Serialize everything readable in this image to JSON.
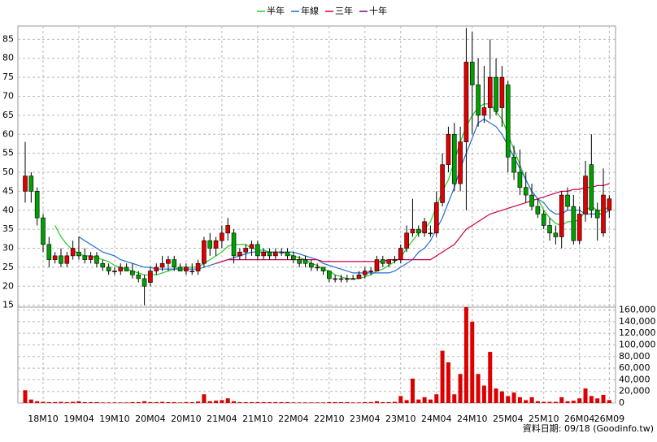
{
  "chart_data": {
    "type": "candlestick",
    "footer": "資料日期: 09/18 (Goodinfo.tw)",
    "categories": [
      null,
      null,
      null,
      "18M10",
      null,
      null,
      null,
      null,
      null,
      "19M04",
      null,
      null,
      null,
      null,
      null,
      "19M10",
      null,
      null,
      null,
      null,
      null,
      "20M04",
      null,
      null,
      null,
      null,
      null,
      "20M10",
      null,
      null,
      null,
      null,
      null,
      "21M04",
      null,
      null,
      null,
      null,
      null,
      "21M10",
      null,
      null,
      null,
      null,
      null,
      "22M04",
      null,
      null,
      null,
      null,
      null,
      "22M10",
      null,
      null,
      null,
      null,
      null,
      "23M04",
      null,
      null,
      null,
      null,
      null,
      "23M10",
      null,
      null,
      null,
      null,
      null,
      "24M04",
      null,
      null,
      null,
      null,
      null,
      "24M10",
      null,
      null,
      null,
      null,
      null,
      "25M04",
      null,
      null,
      null,
      null,
      null,
      "25M10",
      null,
      null,
      null,
      null,
      null,
      "26M04",
      null,
      null,
      null,
      null,
      "26M09"
    ],
    "open": [
      45,
      49,
      45,
      38,
      31,
      27,
      28,
      26,
      28,
      29,
      28,
      27,
      28,
      26,
      25,
      24,
      24,
      25,
      24,
      23,
      22,
      21,
      24,
      25,
      26,
      27,
      25,
      24,
      24,
      24,
      26,
      32,
      30,
      32,
      34,
      34,
      28,
      29,
      30,
      31,
      28,
      29,
      28,
      29,
      29,
      28,
      27,
      27,
      26,
      25,
      25,
      24,
      22,
      22,
      22,
      22,
      22,
      23,
      24,
      24,
      27,
      26,
      27,
      27,
      30,
      34,
      35,
      34,
      34,
      34,
      42,
      52,
      60,
      47,
      58,
      79,
      73,
      65,
      67,
      75,
      67,
      73,
      54,
      50,
      46,
      44,
      41,
      39,
      36,
      34,
      33,
      44,
      41,
      32,
      39,
      52,
      40,
      34,
      40
    ],
    "high": [
      58,
      50,
      46,
      39,
      33,
      29,
      30,
      29,
      32,
      33,
      30,
      29,
      29,
      27,
      26,
      25,
      26,
      26,
      26,
      24,
      23,
      25,
      26,
      28,
      28,
      28,
      26,
      26,
      26,
      27,
      33,
      34,
      33,
      36,
      38,
      35,
      30,
      31,
      32,
      32,
      30,
      30,
      30,
      30,
      30,
      29,
      28,
      28,
      27,
      26,
      25,
      24,
      23,
      23,
      23,
      23,
      24,
      25,
      25,
      28,
      28,
      27,
      28,
      31,
      36,
      43,
      36,
      38,
      36,
      45,
      55,
      62,
      63,
      62,
      88,
      87,
      80,
      78,
      85,
      80,
      78,
      74,
      57,
      56,
      50,
      47,
      43,
      40,
      38,
      36,
      45,
      46,
      44,
      41,
      53,
      60,
      42,
      51,
      44
    ],
    "low": [
      42,
      42,
      36,
      29,
      25,
      26,
      25,
      25,
      27,
      27,
      26,
      26,
      25,
      24,
      23,
      23,
      23,
      24,
      22,
      21,
      15,
      20,
      23,
      24,
      24,
      24,
      24,
      23,
      23,
      23,
      25,
      28,
      28,
      30,
      32,
      26,
      27,
      27,
      28,
      27,
      27,
      27,
      27,
      28,
      27,
      26,
      25,
      25,
      24,
      24,
      23,
      21,
      21,
      21,
      21,
      22,
      22,
      22,
      23,
      24,
      25,
      25,
      26,
      26,
      29,
      33,
      33,
      33,
      33,
      33,
      41,
      50,
      45,
      45,
      40,
      60,
      62,
      63,
      64,
      65,
      62,
      50,
      48,
      44,
      42,
      40,
      38,
      35,
      32,
      31,
      30,
      40,
      31,
      31,
      37,
      38,
      32,
      33,
      38
    ],
    "close": [
      49,
      45,
      38,
      31,
      27,
      28,
      26,
      28,
      30,
      28,
      27,
      28,
      26,
      25,
      24,
      24,
      25,
      24,
      23,
      22,
      20,
      24,
      25,
      26,
      27,
      25,
      24,
      25,
      24,
      26,
      32,
      30,
      32,
      34,
      36,
      28,
      29,
      30,
      31,
      28,
      29,
      28,
      29,
      29,
      28,
      27,
      26,
      26,
      25,
      25,
      24,
      22,
      22,
      22,
      22,
      22,
      23,
      24,
      24,
      27,
      26,
      27,
      27,
      30,
      34,
      35,
      34,
      37,
      34,
      42,
      52,
      60,
      47,
      58,
      79,
      73,
      65,
      67,
      75,
      66,
      75,
      54,
      50,
      46,
      44,
      41,
      39,
      36,
      34,
      33,
      44,
      41,
      32,
      39,
      49,
      40,
      38,
      44,
      43
    ],
    "volume": [
      22000,
      6000,
      3000,
      2000,
      1500,
      1500,
      2000,
      1500,
      2000,
      3000,
      1500,
      1500,
      1500,
      1000,
      1000,
      1000,
      1000,
      1000,
      1500,
      1500,
      3000,
      1500,
      1500,
      2000,
      1500,
      1500,
      1000,
      1500,
      1500,
      2500,
      15000,
      3000,
      4000,
      5000,
      8000,
      3000,
      1500,
      1500,
      1500,
      1500,
      1500,
      1500,
      1500,
      1500,
      1500,
      1000,
      1000,
      1000,
      1000,
      1000,
      1000,
      1500,
      1500,
      1500,
      1500,
      1000,
      1000,
      1500,
      1500,
      3000,
      1500,
      1500,
      2000,
      12000,
      5000,
      42000,
      6000,
      10000,
      6000,
      15000,
      90000,
      70000,
      15000,
      50000,
      165000,
      140000,
      50000,
      30000,
      88000,
      25000,
      20000,
      12000,
      18000,
      10000,
      5000,
      10000,
      3000,
      2000,
      2000,
      2000,
      10000,
      3000,
      4000,
      8000,
      25000,
      12000,
      8000,
      14000,
      5000
    ],
    "series": [
      {
        "name": "半年",
        "color": "#22cc22",
        "values": [
          null,
          null,
          null,
          null,
          null,
          36,
          33,
          31,
          29.5,
          28.5,
          28,
          28,
          27.5,
          27,
          26.5,
          25.5,
          25,
          24.5,
          24,
          23.5,
          23,
          23,
          23,
          23.5,
          24,
          24.5,
          25,
          25,
          25,
          25,
          26,
          27,
          28,
          29,
          30.5,
          31,
          31,
          31,
          30,
          29.5,
          29.5,
          29,
          29,
          29,
          28.5,
          28,
          27.5,
          27,
          26,
          25.5,
          24.5,
          24,
          23,
          22.5,
          22,
          22,
          22,
          22.5,
          23,
          24,
          24.5,
          25.5,
          26.5,
          27.5,
          30,
          32,
          34,
          35,
          37,
          41,
          45,
          48,
          53,
          58,
          62,
          65,
          67,
          68,
          68,
          66,
          64,
          60,
          56,
          52,
          48,
          45,
          43,
          40,
          38,
          36.5,
          36,
          37,
          37,
          37.5,
          40,
          41,
          40,
          40,
          41
        ]
      },
      {
        "name": "年線",
        "color": "#1e6fd0",
        "values": [
          null,
          null,
          null,
          null,
          null,
          null,
          null,
          null,
          null,
          33,
          32,
          31,
          30,
          29,
          28.5,
          28,
          27,
          26.5,
          26,
          25.5,
          25,
          25,
          24.5,
          24.5,
          24.5,
          24.5,
          24.5,
          24.5,
          24.5,
          24.5,
          25,
          25.5,
          26,
          26.5,
          27,
          27.5,
          28,
          28.5,
          29,
          29,
          29,
          29,
          29,
          29,
          29,
          29,
          28.5,
          28,
          27.5,
          27,
          26,
          25.5,
          25,
          24.5,
          24,
          23.5,
          23.5,
          23.5,
          23.5,
          23.5,
          23.5,
          23.5,
          24,
          25,
          26,
          27,
          29,
          30,
          32,
          35,
          38,
          42,
          46,
          51,
          55,
          59,
          63,
          64,
          63,
          62,
          60,
          57,
          54,
          51,
          48,
          45,
          43,
          42,
          40,
          39,
          39,
          40,
          40,
          40,
          39,
          39,
          39,
          39,
          40
        ]
      },
      {
        "name": "三年",
        "color": "#cc0044",
        "values": [
          null,
          null,
          null,
          null,
          null,
          null,
          null,
          null,
          null,
          null,
          null,
          null,
          null,
          null,
          null,
          null,
          null,
          null,
          null,
          null,
          null,
          null,
          null,
          null,
          null,
          null,
          null,
          null,
          null,
          null,
          null,
          null,
          26,
          26.5,
          27,
          27,
          27,
          27,
          27,
          27,
          27,
          27,
          27,
          27,
          27,
          27,
          27,
          27,
          27,
          27,
          26.5,
          26.5,
          26.5,
          26.5,
          26.5,
          26.5,
          26.5,
          26.5,
          26.5,
          26.5,
          26.5,
          27,
          27,
          27,
          27,
          27,
          27,
          27,
          27,
          28,
          29,
          30,
          31,
          33,
          35,
          36,
          37,
          38,
          39,
          39.5,
          40,
          40.5,
          41,
          41.5,
          42,
          42.5,
          43,
          43.5,
          44,
          44.5,
          45,
          45,
          45.5,
          45.5,
          46,
          46,
          46.5,
          46.5,
          47
        ]
      },
      {
        "name": "十年",
        "color": "#800080",
        "values": [
          null,
          null,
          null,
          null,
          null,
          null,
          null,
          null,
          null,
          null,
          null,
          null,
          null,
          null,
          null,
          null,
          null,
          null,
          null,
          null,
          null,
          null,
          null,
          null,
          null,
          null,
          null,
          null,
          null,
          null,
          null,
          null,
          null,
          null,
          null,
          null,
          null,
          null,
          null,
          null,
          null,
          null,
          null,
          null,
          null,
          null,
          null,
          null,
          null,
          null,
          null,
          null,
          null,
          null,
          null,
          null,
          null,
          null,
          null,
          null,
          null,
          null,
          null,
          null,
          null,
          null,
          null,
          null,
          null,
          null,
          null,
          null,
          null,
          null,
          null,
          null,
          null,
          null,
          null,
          null,
          null,
          null,
          null,
          null,
          null,
          null,
          null,
          null,
          null,
          null,
          null,
          null,
          null,
          null,
          null,
          null,
          null,
          null,
          null
        ]
      }
    ],
    "up_color": "#e00000",
    "down_color": "#00a000",
    "volume_color": "#dd0000",
    "ylim": [
      14.5,
      88.5
    ],
    "yticks": [
      15,
      20,
      25,
      30,
      35,
      40,
      45,
      50,
      55,
      60,
      65,
      70,
      75,
      80,
      85
    ],
    "y2lim": [
      0,
      165000
    ],
    "y2ticks": [
      0,
      {
        "value": 20000,
        "label": "20,000"
      },
      {
        "value": 40000,
        "label": "40,000"
      },
      {
        "value": 60000,
        "label": "60,000"
      },
      {
        "value": 80000,
        "label": "80,000"
      },
      {
        "value": 100000,
        "label": "100,000"
      },
      {
        "value": 120000,
        "label": "120,000"
      },
      {
        "value": 140000,
        "label": "140,000"
      },
      {
        "value": 160000,
        "label": "160,000"
      }
    ],
    "grid": true
  }
}
